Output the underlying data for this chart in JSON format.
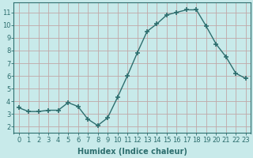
{
  "x": [
    0,
    1,
    2,
    3,
    4,
    5,
    6,
    7,
    8,
    9,
    10,
    11,
    12,
    13,
    14,
    15,
    16,
    17,
    18,
    19,
    20,
    21,
    22,
    23
  ],
  "y": [
    3.5,
    3.2,
    3.2,
    3.3,
    3.3,
    3.9,
    3.6,
    2.6,
    2.1,
    2.7,
    4.3,
    6.0,
    7.8,
    9.5,
    10.1,
    10.8,
    11.0,
    11.2,
    11.2,
    9.9,
    8.5,
    7.5,
    6.2,
    5.8
  ],
  "line_color": "#2d6e6e",
  "marker": "+",
  "marker_size": 4,
  "bg_color": "#c8eaea",
  "grid_color": "#c0a8a8",
  "xlabel": "Humidex (Indice chaleur)",
  "ylim": [
    1.5,
    11.8
  ],
  "xlim": [
    -0.5,
    23.5
  ],
  "yticks": [
    2,
    3,
    4,
    5,
    6,
    7,
    8,
    9,
    10,
    11
  ],
  "xticks": [
    0,
    1,
    2,
    3,
    4,
    5,
    6,
    7,
    8,
    9,
    10,
    11,
    12,
    13,
    14,
    15,
    16,
    17,
    18,
    19,
    20,
    21,
    22,
    23
  ],
  "tick_color": "#2d6e6e",
  "label_fontsize": 6,
  "xlabel_fontsize": 7,
  "axis_color": "#2d6e6e"
}
